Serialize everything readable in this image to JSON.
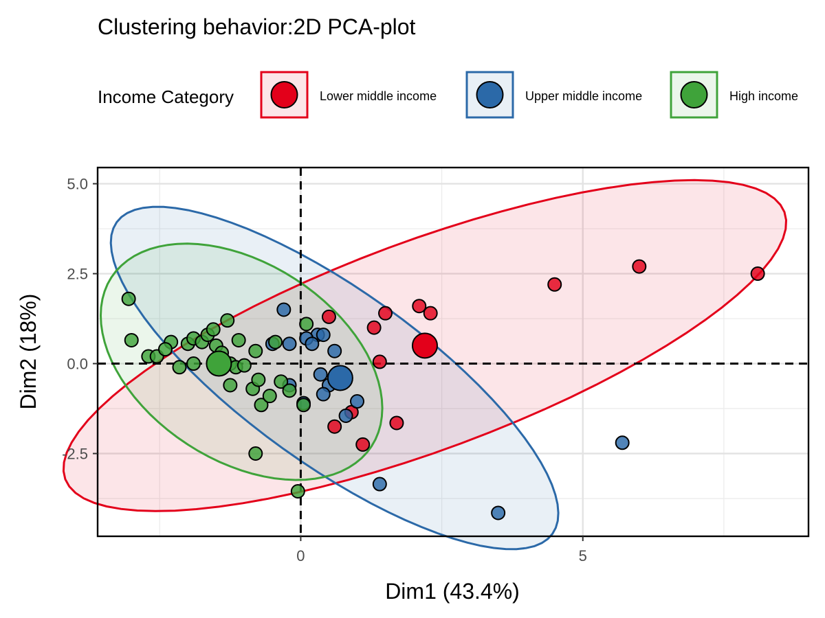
{
  "chart_data": {
    "type": "scatter",
    "title": "Clustering behavior:2D PCA-plot",
    "xlabel": "Dim1 (43.4%)",
    "ylabel": "Dim2 (18%)",
    "xlim": [
      -3.6,
      9.0
    ],
    "ylim": [
      -4.8,
      5.45
    ],
    "x_ticks": [
      {
        "value": 0,
        "label": "0"
      },
      {
        "value": 5,
        "label": "5"
      }
    ],
    "y_ticks": [
      {
        "value": 5.0,
        "label": "5.0"
      },
      {
        "value": 2.5,
        "label": "2.5"
      },
      {
        "value": 0.0,
        "label": "0.0"
      },
      {
        "value": -2.5,
        "label": "-2.5"
      }
    ],
    "minor_x": [
      -2.5,
      2.5,
      7.5
    ],
    "minor_y": [
      3.75,
      1.25,
      -1.25,
      -3.75
    ],
    "grid": true,
    "reference_lines": {
      "x": 0,
      "y": 0,
      "style": "dashed"
    },
    "legend": {
      "title": "Income Category",
      "position": "top",
      "entries": [
        "Lower middle income",
        "Upper middle income",
        "High income"
      ]
    },
    "colors": {
      "Lower middle income": "#E3001A",
      "Upper middle income": "#2B69A8",
      "High income": "#3FA33A"
    },
    "series": [
      {
        "name": "Lower middle income",
        "centroid": [
          2.2,
          0.5
        ],
        "ellipse": {
          "center": [
            2.2,
            0.5
          ],
          "rx": 6.8,
          "ry": 1.85,
          "angle": 20.4
        },
        "points": [
          [
            8.1,
            2.5
          ],
          [
            6.0,
            2.7
          ],
          [
            4.5,
            2.2
          ],
          [
            2.1,
            1.6
          ],
          [
            2.3,
            1.4
          ],
          [
            1.5,
            1.4
          ],
          [
            1.3,
            1.0
          ],
          [
            0.5,
            1.3
          ],
          [
            1.4,
            0.05
          ],
          [
            1.7,
            -1.65
          ],
          [
            1.1,
            -2.25
          ],
          [
            0.9,
            -1.35
          ],
          [
            0.6,
            -1.75
          ]
        ]
      },
      {
        "name": "Upper middle income",
        "centroid": [
          0.7,
          -0.4
        ],
        "ellipse": {
          "center": [
            0.6,
            -0.4
          ],
          "rx": 4.75,
          "ry": 1.55,
          "angle": -35.6
        },
        "points": [
          [
            -0.3,
            1.5
          ],
          [
            0.3,
            0.8
          ],
          [
            0.4,
            0.8
          ],
          [
            0.1,
            0.7
          ],
          [
            0.2,
            0.55
          ],
          [
            0.6,
            0.35
          ],
          [
            -0.5,
            0.55
          ],
          [
            -0.2,
            0.55
          ],
          [
            0.35,
            -0.3
          ],
          [
            0.5,
            -0.6
          ],
          [
            0.4,
            -0.85
          ],
          [
            1.0,
            -1.05
          ],
          [
            0.8,
            -1.45
          ],
          [
            0.05,
            -1.1
          ],
          [
            -0.2,
            -0.6
          ],
          [
            5.7,
            -2.2
          ],
          [
            1.4,
            -3.35
          ],
          [
            3.5,
            -4.15
          ]
        ]
      },
      {
        "name": "High income",
        "centroid": [
          -1.45,
          0.0
        ],
        "ellipse": {
          "center": [
            -1.05,
            0.05
          ],
          "rx": 2.75,
          "ry": 1.75,
          "angle": -33.0
        },
        "points": [
          [
            -3.05,
            1.8
          ],
          [
            -3.0,
            0.65
          ],
          [
            -2.7,
            0.2
          ],
          [
            -2.55,
            0.2
          ],
          [
            -2.3,
            0.6
          ],
          [
            -2.4,
            0.4
          ],
          [
            -2.15,
            -0.1
          ],
          [
            -2.0,
            0.55
          ],
          [
            -1.9,
            0.7
          ],
          [
            -1.75,
            0.6
          ],
          [
            -1.65,
            0.8
          ],
          [
            -1.5,
            0.5
          ],
          [
            -1.55,
            0.95
          ],
          [
            -1.4,
            0.3
          ],
          [
            -1.3,
            1.2
          ],
          [
            -1.9,
            0.0
          ],
          [
            -1.25,
            0.0
          ],
          [
            -1.15,
            -0.1
          ],
          [
            -1.25,
            -0.6
          ],
          [
            -1.1,
            0.65
          ],
          [
            -1.0,
            -0.05
          ],
          [
            -0.8,
            0.35
          ],
          [
            -0.85,
            -0.7
          ],
          [
            -0.75,
            -0.45
          ],
          [
            -0.7,
            -1.15
          ],
          [
            -0.55,
            -0.9
          ],
          [
            -0.45,
            0.6
          ],
          [
            -0.35,
            -0.5
          ],
          [
            -0.2,
            -0.75
          ],
          [
            0.1,
            1.1
          ],
          [
            0.05,
            -1.15
          ],
          [
            -0.8,
            -2.5
          ],
          [
            -0.05,
            -3.55
          ]
        ]
      }
    ]
  }
}
